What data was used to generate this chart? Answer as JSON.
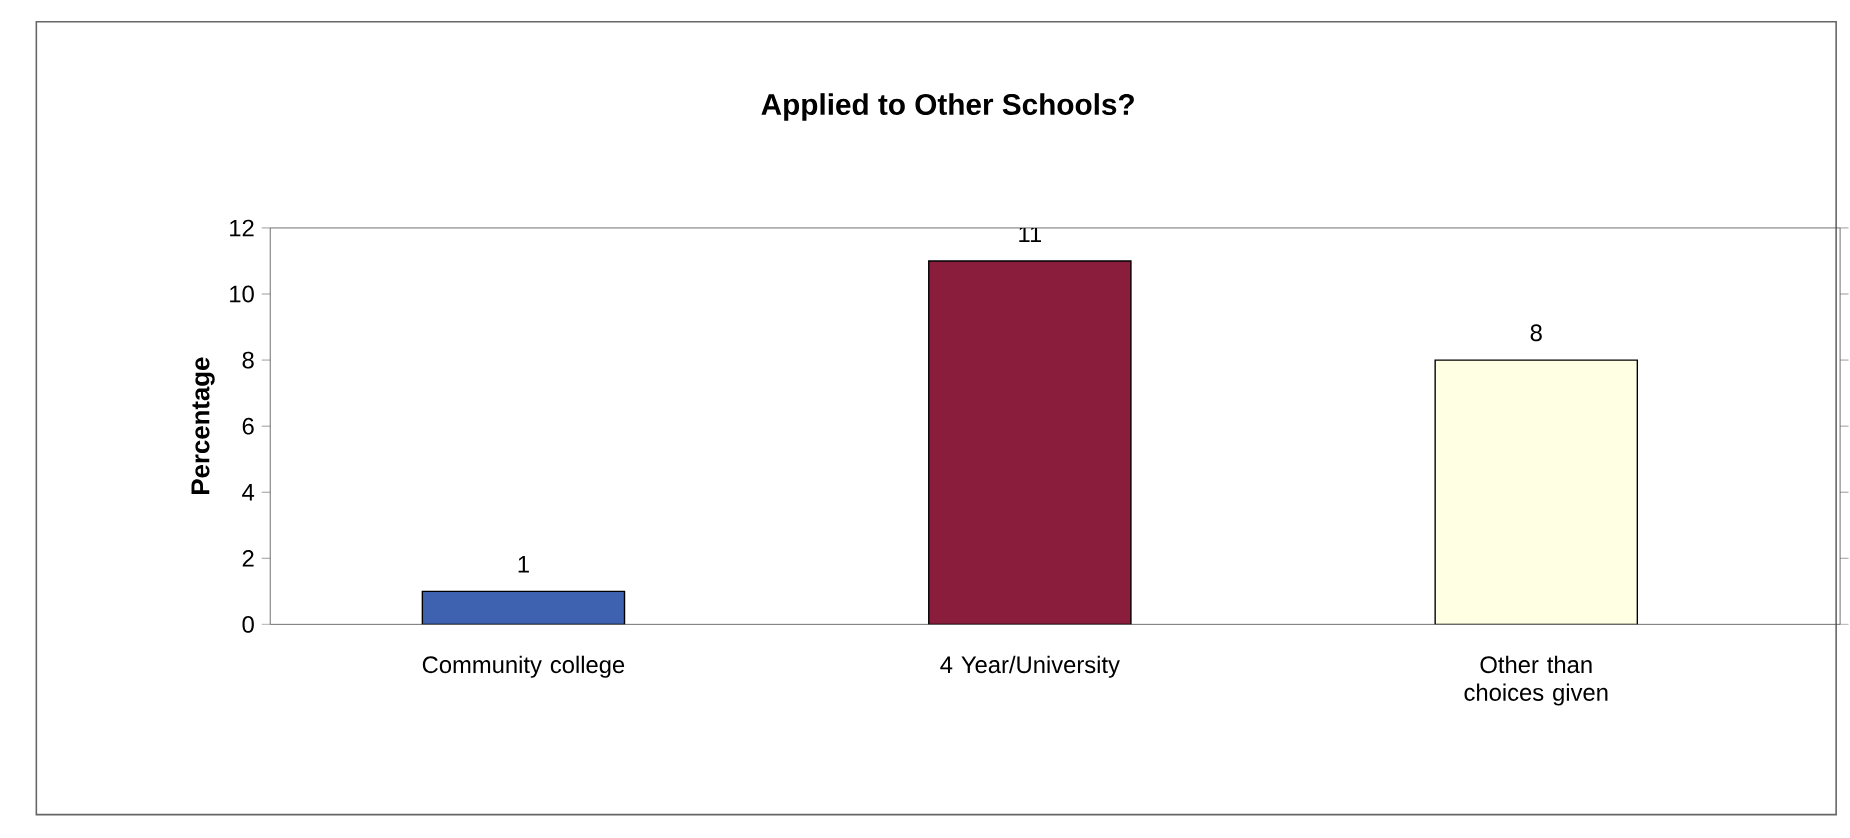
{
  "chart_data": {
    "type": "bar",
    "title": "Applied to Other Schools?",
    "ylabel": "Percentage",
    "categories": [
      "Community college",
      "4 Year/University",
      "Other than choices given"
    ],
    "values": [
      1,
      11,
      8
    ],
    "colors": [
      "#3f62b0",
      "#8a1c3c",
      "#ffffe3"
    ],
    "ylim": [
      0,
      12
    ],
    "yticks": [
      0,
      2,
      4,
      6,
      8,
      10,
      12
    ],
    "data_labels": true
  }
}
